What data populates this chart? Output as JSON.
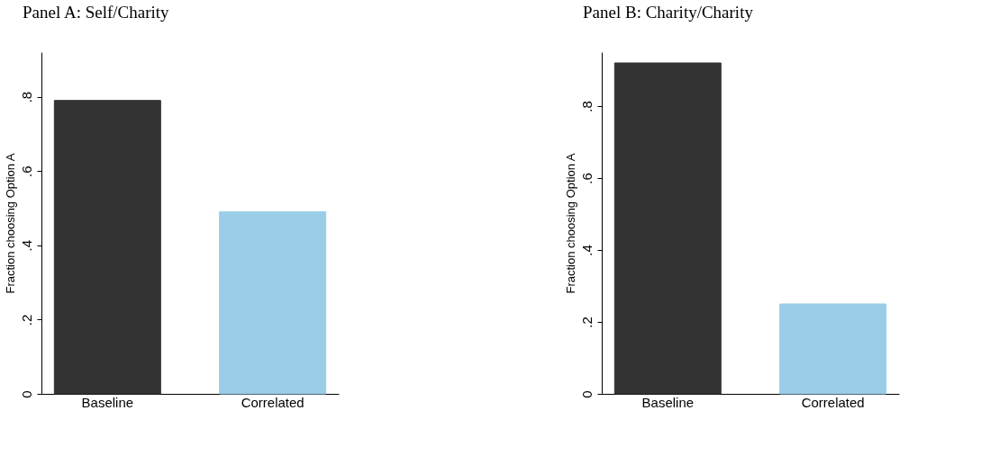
{
  "chart_data": [
    {
      "type": "bar",
      "title": "Panel A: Self/Charity",
      "ylabel": "Fraction choosing Option A",
      "categories": [
        "Baseline",
        "Correlated"
      ],
      "values": [
        0.79,
        0.49
      ],
      "colors": [
        "#333333",
        "#9bcde9"
      ],
      "ylim": [
        0,
        0.92
      ],
      "yticks": [
        0,
        {
          "value": 0.2,
          "label": ".2"
        },
        {
          "value": 0.4,
          "label": ".4"
        },
        {
          "value": 0.6,
          "label": ".6"
        },
        {
          "value": 0.8,
          "label": ".8"
        }
      ],
      "grid": false
    },
    {
      "type": "bar",
      "title": "Panel B: Charity/Charity",
      "ylabel": "Fraction choosing Option A",
      "categories": [
        "Baseline",
        "Correlated"
      ],
      "values": [
        0.92,
        0.25
      ],
      "colors": [
        "#333333",
        "#9bcde9"
      ],
      "ylim": [
        0,
        0.95
      ],
      "yticks": [
        0,
        {
          "value": 0.2,
          "label": ".2"
        },
        {
          "value": 0.4,
          "label": ".4"
        },
        {
          "value": 0.6,
          "label": ".6"
        },
        {
          "value": 0.8,
          "label": ".8"
        }
      ],
      "grid": false
    }
  ]
}
